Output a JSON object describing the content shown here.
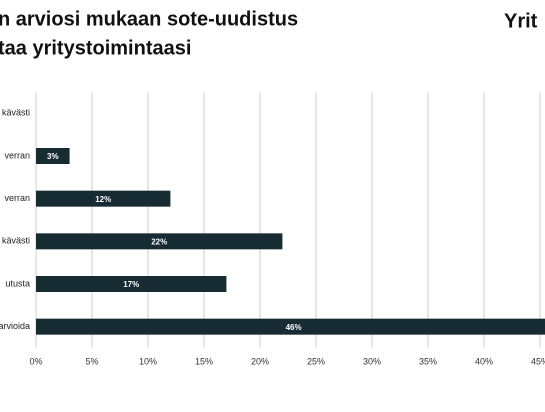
{
  "chart_data": {
    "type": "hbar",
    "title_lines": [
      "n arviosi mukaan sote-uudistus",
      "taa yritystoimintaasi"
    ],
    "brand": "Yrit",
    "categories": [
      "kävästi",
      "verran",
      "verran",
      "kävästi",
      "utusta",
      "arvioida"
    ],
    "values": [
      0,
      3,
      12,
      22,
      17,
      46
    ],
    "value_labels": [
      null,
      "3%",
      "12%",
      "22%",
      "17%",
      "46%"
    ],
    "color": "#172b33",
    "xlim": [
      0,
      50
    ],
    "xticks": [
      {
        "value": 0,
        "label": "0%"
      },
      {
        "value": 5,
        "label": "5%"
      },
      {
        "value": 10,
        "label": "10%"
      },
      {
        "value": 15,
        "label": "15%"
      },
      {
        "value": 20,
        "label": "20%"
      },
      {
        "value": 25,
        "label": "25%"
      },
      {
        "value": 30,
        "label": "30%"
      },
      {
        "value": 35,
        "label": "35%"
      },
      {
        "value": 40,
        "label": "40%"
      },
      {
        "value": 45,
        "label": "45%"
      }
    ],
    "grid": true
  }
}
